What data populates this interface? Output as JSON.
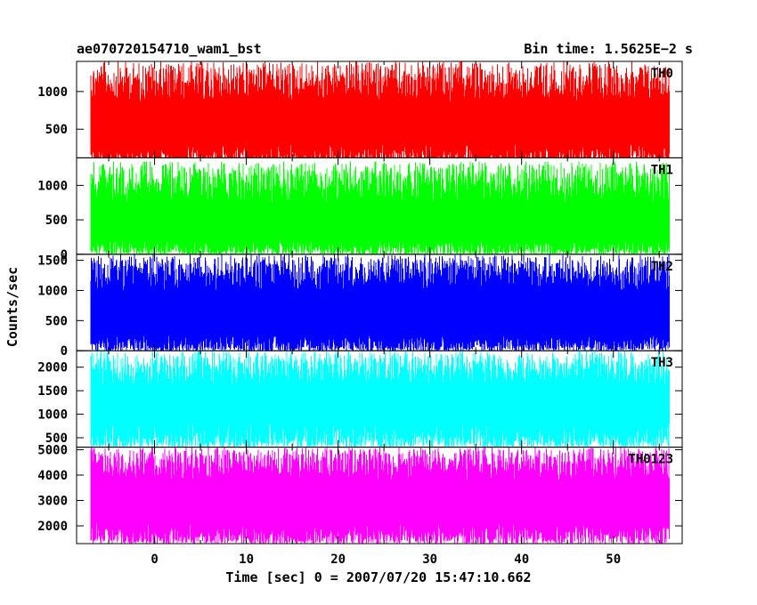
{
  "chart_data": {
    "type": "line",
    "title_left": "ae070720154710_wam1_bst",
    "title_right": "Bin time: 1.5625E−2 s",
    "ylabel": "Counts/sec",
    "xlabel": "Time [sec] 0 = 2007/07/20 15:47:10.662",
    "xlim": [
      -8.5,
      57.5
    ],
    "data_x_range": [
      -6.9,
      56.0
    ],
    "xticks": [
      0,
      10,
      20,
      30,
      40,
      50
    ],
    "xtick_labels": [
      "0",
      "10",
      "20",
      "30",
      "40",
      "50"
    ],
    "panels": [
      {
        "name": "TH0",
        "color": "#ff0000",
        "ylim": [
          120,
          1400
        ],
        "yticks": [
          500,
          1000
        ],
        "ytick_labels": [
          "500",
          "1000"
        ],
        "envelope": {
          "low": [
            20,
            300
          ],
          "high": [
            850,
            1400
          ]
        }
      },
      {
        "name": "TH1",
        "color": "#00ff00",
        "ylim": [
          0,
          1400
        ],
        "yticks": [
          0,
          500,
          1000
        ],
        "ytick_labels": [
          "0",
          "500",
          "1000"
        ],
        "envelope": {
          "low": [
            0,
            200
          ],
          "high": [
            750,
            1350
          ]
        }
      },
      {
        "name": "TH2",
        "color": "#0000ff",
        "ylim": [
          0,
          1600
        ],
        "yticks": [
          0,
          500,
          1000,
          1500
        ],
        "ytick_labels": [
          "0",
          "500",
          "1000",
          "1500"
        ],
        "envelope": {
          "low": [
            0,
            250
          ],
          "high": [
            1000,
            1600
          ]
        }
      },
      {
        "name": "TH3",
        "color": "#00ffff",
        "ylim": [
          300,
          2350
        ],
        "yticks": [
          500,
          1000,
          1500,
          2000
        ],
        "ytick_labels": [
          "500",
          "1000",
          "1500",
          "2000"
        ],
        "envelope": {
          "low": [
            300,
            800
          ],
          "high": [
            1600,
            2350
          ]
        }
      },
      {
        "name": "TH0123",
        "color": "#ff00ff",
        "ylim": [
          1300,
          5100
        ],
        "yticks": [
          2000,
          3000,
          4000,
          5000
        ],
        "ytick_labels": [
          "2000",
          "3000",
          "4000",
          "5000"
        ],
        "envelope": {
          "low": [
            1300,
            2100
          ],
          "high": [
            3800,
            5100
          ]
        }
      }
    ]
  }
}
